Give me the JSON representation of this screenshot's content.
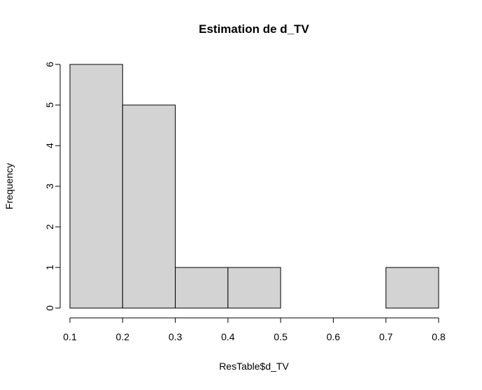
{
  "chart_data": {
    "type": "bar",
    "subtype": "histogram",
    "title": "Estimation de d_TV",
    "xlabel": "ResTable$d_TV",
    "ylabel": "Frequency",
    "bins": [
      {
        "from": 0.1,
        "to": 0.2,
        "count": 6
      },
      {
        "from": 0.2,
        "to": 0.3,
        "count": 5
      },
      {
        "from": 0.3,
        "to": 0.4,
        "count": 1
      },
      {
        "from": 0.4,
        "to": 0.5,
        "count": 1
      },
      {
        "from": 0.5,
        "to": 0.6,
        "count": 0
      },
      {
        "from": 0.6,
        "to": 0.7,
        "count": 0
      },
      {
        "from": 0.7,
        "to": 0.8,
        "count": 1
      }
    ],
    "xlim": [
      0.1,
      0.8
    ],
    "ylim": [
      0,
      6
    ],
    "xticks": [
      "0.1",
      "0.2",
      "0.3",
      "0.4",
      "0.5",
      "0.6",
      "0.7",
      "0.8"
    ],
    "yticks": [
      "0",
      "1",
      "2",
      "3",
      "4",
      "5",
      "6"
    ],
    "grid": false,
    "bar_color": "#d3d3d3",
    "edge_color": "#000000"
  }
}
